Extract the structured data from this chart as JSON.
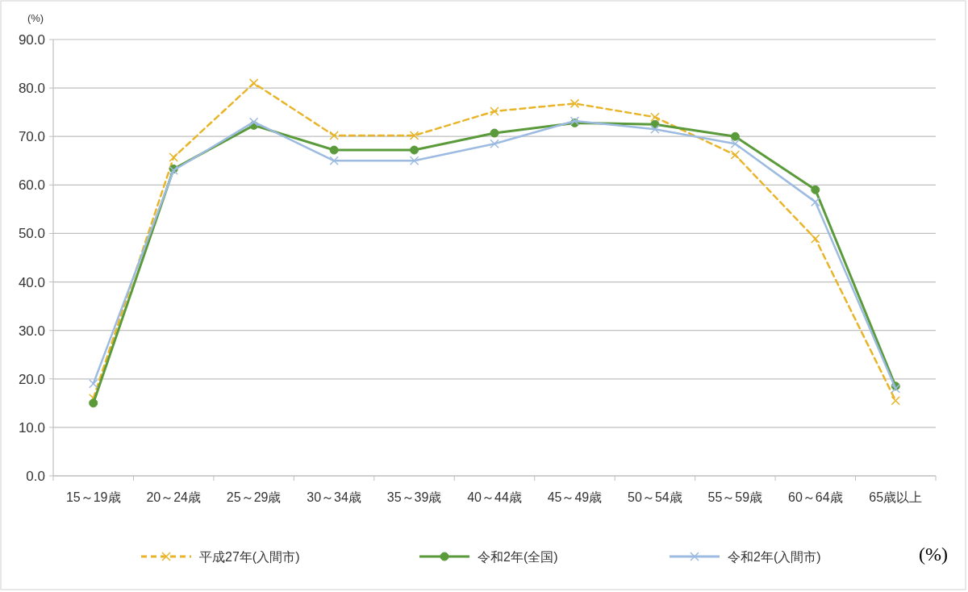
{
  "chart_data": {
    "type": "line",
    "ylabel": "(%)",
    "categories": [
      "15～19歳",
      "20～24歳",
      "25～29歳",
      "30～34歳",
      "35～39歳",
      "40～44歳",
      "45～49歳",
      "50～54歳",
      "55～59歳",
      "60～64歳",
      "65歳以上"
    ],
    "series": [
      {
        "name": "平成27年(入間市)",
        "color": "#e8b428",
        "line_style": "dashed",
        "marker": "cross",
        "values": [
          16.0,
          65.7,
          81.0,
          70.2,
          70.2,
          75.2,
          76.8,
          74.0,
          66.2,
          48.9,
          15.5
        ]
      },
      {
        "name": "令和2年(全国)",
        "color": "#5a9a3a",
        "line_style": "solid",
        "marker": "circle",
        "values": [
          15.0,
          63.3,
          72.3,
          67.2,
          67.2,
          70.7,
          72.8,
          72.5,
          70.0,
          59.0,
          18.5
        ]
      },
      {
        "name": "令和2年(入間市)",
        "color": "#9dbbe0",
        "line_style": "solid",
        "marker": "cross",
        "values": [
          19.0,
          63.0,
          73.0,
          65.0,
          65.0,
          68.5,
          73.2,
          71.5,
          68.5,
          56.5,
          18.0
        ]
      }
    ],
    "ylim": [
      0,
      90
    ],
    "yticks": [
      {
        "value": 0,
        "label": "0.0"
      },
      {
        "value": 10,
        "label": "10.0"
      },
      {
        "value": 20,
        "label": "20.0"
      },
      {
        "value": 30,
        "label": "30.0"
      },
      {
        "value": 40,
        "label": "40.0"
      },
      {
        "value": 50,
        "label": "50.0"
      },
      {
        "value": 60,
        "label": "60.0"
      },
      {
        "value": 70,
        "label": "70.0"
      },
      {
        "value": 80,
        "label": "80.0"
      },
      {
        "value": 90,
        "label": "90.0"
      }
    ],
    "grid": "y",
    "legend": "bottom",
    "annotations": [
      "(%)"
    ]
  }
}
